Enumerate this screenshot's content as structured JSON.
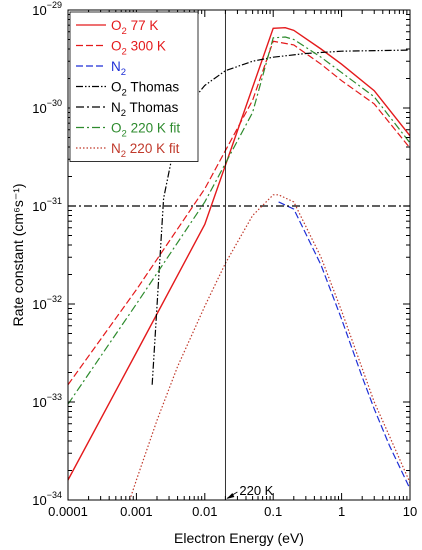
{
  "chart_data": {
    "type": "line",
    "xlabel": "Electron Energy (eV)",
    "ylabel": "Rate constant (cm⁶s⁻¹)",
    "xscale": "log",
    "yscale": "log",
    "xlim": [
      0.0001,
      10
    ],
    "ylim": [
      1e-34,
      1e-29
    ],
    "x_ticks": [
      {
        "value": 0.0001,
        "label": "0.0001"
      },
      {
        "value": 0.001,
        "label": "0.001"
      },
      {
        "value": 0.01,
        "label": "0.01"
      },
      {
        "value": 0.1,
        "label": "0.1"
      },
      {
        "value": 1,
        "label": "1"
      },
      {
        "value": 10,
        "label": "10"
      }
    ],
    "y_ticks": [
      {
        "value": 1e-34,
        "base": "10",
        "exp": "−34"
      },
      {
        "value": 1e-33,
        "base": "10",
        "exp": "−33"
      },
      {
        "value": 1e-32,
        "base": "10",
        "exp": "−32"
      },
      {
        "value": 1e-31,
        "base": "10",
        "exp": "−31"
      },
      {
        "value": 1e-30,
        "base": "10",
        "exp": "−30"
      },
      {
        "value": 1e-29,
        "base": "10",
        "exp": "−29"
      }
    ],
    "legend_position": "top-left",
    "annotation": {
      "text": "220 K",
      "x": 0.02
    },
    "series": [
      {
        "name_main": "O",
        "name_sub": "2",
        "name_rest": " 77 K",
        "color": "#e41a1c",
        "dash": "solid",
        "x": [
          0.0001,
          0.001,
          0.01,
          0.1,
          0.15,
          0.2,
          0.5,
          1,
          3,
          10
        ],
        "y": [
          1.6e-34,
          3.2e-33,
          6.5e-32,
          6.5e-30,
          6.6e-30,
          6.2e-30,
          4e-30,
          2.8e-30,
          1.5e-30,
          5.2e-31
        ]
      },
      {
        "name_main": "O",
        "name_sub": "2",
        "name_rest": " 300 K",
        "color": "#e41a1c",
        "dash": "dashed",
        "x": [
          0.0001,
          0.001,
          0.01,
          0.05,
          0.1,
          0.2,
          0.5,
          1,
          3,
          10
        ],
        "y": [
          1.5e-33,
          1.4e-32,
          1.5e-31,
          1.2e-30,
          4.8e-30,
          4.4e-30,
          2.8e-30,
          1.9e-30,
          1.1e-30,
          3.9e-31
        ]
      },
      {
        "name_main": "N",
        "name_sub": "2",
        "name_rest": "",
        "color": "#1f2fd6",
        "dash": "dashed",
        "x": [
          0.12,
          0.2,
          0.5,
          1,
          2,
          3,
          5,
          10
        ],
        "y": [
          1.1e-31,
          9.3e-32,
          2.5e-32,
          7e-33,
          1.8e-33,
          8.5e-34,
          3.6e-34,
          1.3e-34
        ]
      },
      {
        "name_main": "O",
        "name_sub": "2",
        "name_rest": " Thomas",
        "color": "#000000",
        "dash": "dashdotdot",
        "x": [
          0.0017,
          0.0025,
          0.004,
          0.006,
          0.01,
          0.02,
          0.05,
          0.1,
          0.3,
          1,
          10
        ],
        "y": [
          1.5e-33,
          1.2e-31,
          6e-31,
          1.1e-30,
          1.7e-30,
          2.4e-30,
          3e-30,
          3.3e-30,
          3.6e-30,
          3.8e-30,
          3.9e-30
        ]
      },
      {
        "name_main": "N",
        "name_sub": "2",
        "name_rest": " Thomas",
        "color": "#000000",
        "dash": "dashdot",
        "x": [
          0.0001,
          10
        ],
        "y": [
          1e-31,
          1e-31
        ]
      },
      {
        "name_main": "O",
        "name_sub": "2",
        "name_rest": " 220 K fit",
        "color": "#2e8b2e",
        "dash": "dashdot",
        "x": [
          0.0001,
          0.001,
          0.01,
          0.05,
          0.1,
          0.15,
          0.2,
          0.5,
          1,
          3,
          10
        ],
        "y": [
          9.5e-34,
          1e-32,
          1.1e-31,
          9e-31,
          5.2e-30,
          5.3e-30,
          5e-30,
          3.3e-30,
          2.3e-30,
          1.3e-30,
          4.4e-31
        ]
      },
      {
        "name_main": "N",
        "name_sub": "2",
        "name_rest": " 220 K fit",
        "color": "#c0392b",
        "dash": "dotted",
        "x": [
          0.0008,
          0.001,
          0.002,
          0.004,
          0.01,
          0.02,
          0.05,
          0.1,
          0.12,
          0.2,
          0.5,
          1,
          2,
          3,
          5,
          10
        ],
        "y": [
          1e-34,
          1.6e-34,
          6.5e-34,
          2.3e-33,
          9.5e-33,
          2.6e-32,
          8e-32,
          1.3e-31,
          1.3e-31,
          1.1e-31,
          3e-32,
          8.5e-33,
          2.2e-33,
          1e-33,
          4.5e-34,
          1.5e-34
        ]
      }
    ]
  }
}
